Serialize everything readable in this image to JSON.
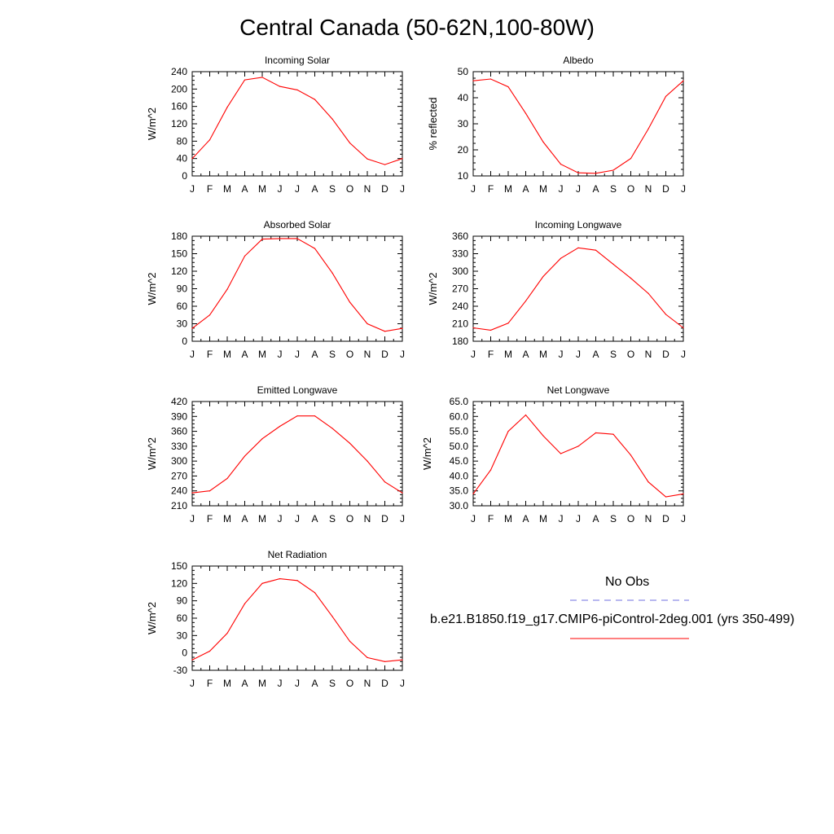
{
  "page": {
    "title": "Central Canada (50-62N,100-80W)"
  },
  "colors": {
    "model_line": "#ff0000",
    "obs_line": "#6f6fe0",
    "axis": "#000000"
  },
  "legend": {
    "obs_label": "No Obs",
    "model_label": "b.e21.B1850.f19_g17.CMIP6-piControl-2deg.001 (yrs 350-499)"
  },
  "chart_data": [
    {
      "type": "line",
      "title": "Incoming Solar",
      "ylabel": "W/m^2",
      "xlabel": "",
      "categories": [
        "J",
        "F",
        "M",
        "A",
        "M",
        "J",
        "J",
        "A",
        "S",
        "O",
        "N",
        "D",
        "J"
      ],
      "ylim": [
        0,
        240
      ],
      "yticks": [
        0,
        40,
        80,
        120,
        160,
        200,
        240
      ],
      "ytick_labels": [
        "0",
        "40",
        "80",
        "120",
        "160",
        "200",
        "240"
      ],
      "series": [
        {
          "values": [
            40,
            83,
            158,
            221,
            227,
            206,
            198,
            176,
            131,
            76,
            39,
            26,
            40
          ]
        }
      ]
    },
    {
      "type": "line",
      "title": "Albedo",
      "ylabel": "% reflected",
      "xlabel": "",
      "categories": [
        "J",
        "F",
        "M",
        "A",
        "M",
        "J",
        "J",
        "A",
        "S",
        "O",
        "N",
        "D",
        "J"
      ],
      "ylim": [
        10,
        50
      ],
      "yticks": [
        10,
        20,
        30,
        40,
        50
      ],
      "ytick_labels": [
        "10",
        "20",
        "30",
        "40",
        "50"
      ],
      "series": [
        {
          "values": [
            46.5,
            47.2,
            44.2,
            34.0,
            23.0,
            14.5,
            11.2,
            11.0,
            12.2,
            16.7,
            28.0,
            40.5,
            46.5
          ]
        }
      ]
    },
    {
      "type": "line",
      "title": "Absorbed Solar",
      "ylabel": "W/m^2",
      "xlabel": "",
      "categories": [
        "J",
        "F",
        "M",
        "A",
        "M",
        "J",
        "J",
        "A",
        "S",
        "O",
        "N",
        "D",
        "J"
      ],
      "ylim": [
        0,
        180
      ],
      "yticks": [
        0,
        30,
        60,
        90,
        120,
        150,
        180
      ],
      "ytick_labels": [
        "0",
        "30",
        "60",
        "90",
        "120",
        "150",
        "180"
      ],
      "series": [
        {
          "values": [
            22,
            45,
            89,
            146,
            175,
            176,
            176,
            159,
            117,
            67,
            30,
            17,
            22
          ]
        }
      ]
    },
    {
      "type": "line",
      "title": "Incoming Longwave",
      "ylabel": "W/m^2",
      "xlabel": "",
      "categories": [
        "J",
        "F",
        "M",
        "A",
        "M",
        "J",
        "J",
        "A",
        "S",
        "O",
        "N",
        "D",
        "J"
      ],
      "ylim": [
        180,
        360
      ],
      "yticks": [
        180,
        210,
        240,
        270,
        300,
        330,
        360
      ],
      "ytick_labels": [
        "180",
        "210",
        "240",
        "270",
        "300",
        "330",
        "360"
      ],
      "series": [
        {
          "values": [
            203,
            199,
            211,
            249,
            291,
            322,
            340,
            336,
            312,
            288,
            262,
            226,
            203
          ]
        }
      ]
    },
    {
      "type": "line",
      "title": "Emitted Longwave",
      "ylabel": "W/m^2",
      "xlabel": "",
      "categories": [
        "J",
        "F",
        "M",
        "A",
        "M",
        "J",
        "J",
        "A",
        "S",
        "O",
        "N",
        "D",
        "J"
      ],
      "ylim": [
        210,
        420
      ],
      "yticks": [
        210,
        240,
        270,
        300,
        330,
        360,
        390,
        420
      ],
      "ytick_labels": [
        "210",
        "240",
        "270",
        "300",
        "330",
        "360",
        "390",
        "420"
      ],
      "series": [
        {
          "values": [
            236,
            240,
            265,
            310,
            345,
            370,
            391,
            391,
            366,
            336,
            300,
            258,
            236
          ]
        }
      ]
    },
    {
      "type": "line",
      "title": "Net Longwave",
      "ylabel": "W/m^2",
      "xlabel": "",
      "categories": [
        "J",
        "F",
        "M",
        "A",
        "M",
        "J",
        "J",
        "A",
        "S",
        "O",
        "N",
        "D",
        "J"
      ],
      "ylim": [
        30,
        65
      ],
      "yticks": [
        30,
        35,
        40,
        45,
        50,
        55,
        60,
        65
      ],
      "ytick_labels": [
        "30.0",
        "35.0",
        "40.0",
        "45.0",
        "50.0",
        "55.0",
        "60.0",
        "65.0"
      ],
      "series": [
        {
          "values": [
            34.0,
            42.0,
            55.0,
            60.5,
            53.5,
            47.5,
            50.0,
            54.5,
            54.0,
            47.0,
            38.0,
            33.0,
            34.0
          ]
        }
      ]
    },
    {
      "type": "line",
      "title": "Net Radiation",
      "ylabel": "W/m^2",
      "xlabel": "",
      "categories": [
        "J",
        "F",
        "M",
        "A",
        "M",
        "J",
        "J",
        "A",
        "S",
        "O",
        "N",
        "D",
        "J"
      ],
      "ylim": [
        -30,
        150
      ],
      "yticks": [
        -30,
        0,
        30,
        60,
        90,
        120,
        150
      ],
      "ytick_labels": [
        "-30",
        "0",
        "30",
        "60",
        "90",
        "120",
        "150"
      ],
      "series": [
        {
          "values": [
            -12,
            3,
            34,
            85,
            120,
            128,
            125,
            104,
            63,
            20,
            -8,
            -15,
            -12
          ]
        }
      ]
    }
  ]
}
